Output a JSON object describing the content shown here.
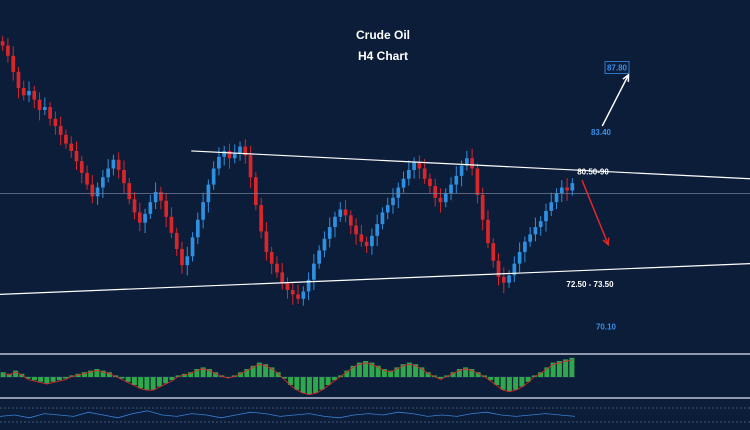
{
  "chart_data": {
    "type": "candlestick",
    "title": "Crude Oil",
    "subtitle": "H4 Chart",
    "ylim": [
      68.5,
      90.5
    ],
    "grid": false,
    "levels": [
      {
        "label": "87.80",
        "value": 87.8,
        "color": "#3b8ee8",
        "boxed": true
      },
      {
        "label": "83.40",
        "value": 83.4,
        "color": "#3b8ee8"
      },
      {
        "label": "80.50-90",
        "value": 80.7,
        "color": "#ffffff"
      },
      {
        "label": "72.50 - 73.50",
        "value": 73.0,
        "color": "#ffffff"
      },
      {
        "label": "70.10",
        "value": 70.1,
        "color": "#3b8ee8"
      }
    ],
    "horizontal_line": 79.2,
    "close_series": [
      89.3,
      88.6,
      87.5,
      86.4,
      85.9,
      86.2,
      85.6,
      84.9,
      85.1,
      84.3,
      83.8,
      83.2,
      82.6,
      82.1,
      81.4,
      80.6,
      79.8,
      79.0,
      79.6,
      80.3,
      80.9,
      81.5,
      80.8,
      79.9,
      78.8,
      77.9,
      77.2,
      77.8,
      78.6,
      79.3,
      78.7,
      77.6,
      76.5,
      75.4,
      74.3,
      74.9,
      76.2,
      77.4,
      78.6,
      79.8,
      80.9,
      81.7,
      82.1,
      81.6,
      81.9,
      82.4,
      81.8,
      80.3,
      78.4,
      76.6,
      75.2,
      74.4,
      73.8,
      73.1,
      72.6,
      72.3,
      72.0,
      72.5,
      73.3,
      74.4,
      75.3,
      76.1,
      76.9,
      77.6,
      78.1,
      77.7,
      77.0,
      76.4,
      75.9,
      75.6,
      76.3,
      77.1,
      77.9,
      78.4,
      78.9,
      79.6,
      80.2,
      80.8,
      81.3,
      80.9,
      80.2,
      79.7,
      78.9,
      78.6,
      79.2,
      79.8,
      80.4,
      81.1,
      81.6,
      80.9,
      79.1,
      77.4,
      75.8,
      74.6,
      73.5,
      73.1,
      73.6,
      74.4,
      75.2,
      75.9,
      76.4,
      76.9,
      77.3,
      78.0,
      78.6,
      79.2,
      79.6,
      79.4,
      79.9
    ],
    "trendlines": [
      {
        "name": "resistance",
        "from": [
          0.255,
          82.1
        ],
        "to": [
          1.0,
          80.2
        ]
      },
      {
        "name": "support",
        "from": [
          0.0,
          72.3
        ],
        "to": [
          1.0,
          74.4
        ]
      }
    ],
    "arrows": [
      {
        "from": [
          0.803,
          83.8
        ],
        "to": [
          0.838,
          87.3
        ],
        "color": "#ffffff"
      },
      {
        "from": [
          0.776,
          80.1
        ],
        "to": [
          0.811,
          75.7
        ],
        "color": "#e0282a"
      }
    ]
  },
  "oscillator": {
    "histogram": [
      3,
      2,
      4,
      2,
      -1,
      -2,
      -3,
      -4,
      -3,
      -2,
      -1,
      1,
      2,
      3,
      4,
      5,
      4,
      3,
      1,
      -1,
      -3,
      -5,
      -7,
      -8,
      -8,
      -6,
      -4,
      -2,
      1,
      2,
      3,
      5,
      6,
      5,
      3,
      1,
      0,
      1,
      3,
      5,
      7,
      9,
      8,
      6,
      3,
      -1,
      -5,
      -8,
      -10,
      -11,
      -10,
      -8,
      -5,
      -2,
      1,
      4,
      7,
      9,
      10,
      9,
      7,
      5,
      4,
      6,
      8,
      9,
      8,
      6,
      3,
      1,
      -1,
      1,
      3,
      5,
      6,
      5,
      3,
      1,
      -2,
      -5,
      -8,
      -9,
      -8,
      -6,
      -3,
      1,
      3,
      6,
      9,
      10,
      11,
      12
    ]
  },
  "lower_indicator": {
    "values": [
      0.4,
      0.5,
      0.3,
      0.6,
      0.5,
      0.4,
      0.7,
      0.5,
      0.3,
      0.6,
      0.8,
      0.5,
      0.4,
      0.6,
      0.5,
      0.3,
      0.5,
      0.7,
      0.6,
      0.4,
      0.5,
      0.6,
      0.4,
      0.3,
      0.5,
      0.6,
      0.5,
      0.7,
      0.6,
      0.4,
      0.5,
      0.4,
      0.6,
      0.7,
      0.5,
      0.4,
      0.5,
      0.6,
      0.5,
      0.4
    ]
  }
}
